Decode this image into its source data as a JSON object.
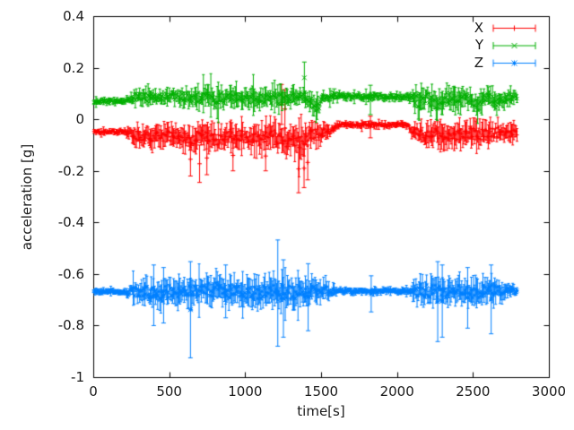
{
  "chart_data": {
    "type": "line-errorbars",
    "title": "",
    "xlabel": "time[s]",
    "ylabel": "acceleration [g]",
    "xlim": [
      0,
      3000
    ],
    "ylim": [
      -1,
      0.4
    ],
    "x_ticks": [
      "0",
      "500",
      "1000",
      "1500",
      "2000",
      "2500",
      "3000"
    ],
    "y_ticks": [
      "0.4",
      "0.2",
      "0",
      "-0.2",
      "-0.4",
      "-0.6",
      "-0.8",
      "-1"
    ],
    "grid": false,
    "legend_position": "top-right-inside",
    "background": "#ffffff",
    "axis_color": "#000000",
    "text_color": "#1a1a1a",
    "envelope_format": [
      "t_seconds",
      "center_g",
      "half_band_g"
    ],
    "spikes_format": [
      "t_seconds",
      "low_g",
      "high_g"
    ],
    "series": [
      {
        "name": "X",
        "color": "#ff0000",
        "marker": "plus",
        "envelope": [
          [
            0,
            -0.048,
            0.012
          ],
          [
            205,
            -0.048,
            0.012
          ],
          [
            235,
            -0.055,
            0.024
          ],
          [
            270,
            -0.06,
            0.038
          ],
          [
            360,
            -0.066,
            0.046
          ],
          [
            450,
            -0.07,
            0.05
          ],
          [
            540,
            -0.06,
            0.044
          ],
          [
            630,
            -0.076,
            0.054
          ],
          [
            720,
            -0.066,
            0.05
          ],
          [
            810,
            -0.08,
            0.058
          ],
          [
            900,
            -0.06,
            0.044
          ],
          [
            1000,
            -0.068,
            0.05
          ],
          [
            1100,
            -0.076,
            0.054
          ],
          [
            1180,
            -0.066,
            0.054
          ],
          [
            1270,
            -0.08,
            0.06
          ],
          [
            1355,
            -0.086,
            0.064
          ],
          [
            1420,
            -0.066,
            0.054
          ],
          [
            1480,
            -0.058,
            0.046
          ],
          [
            1555,
            -0.045,
            0.03
          ],
          [
            1600,
            -0.026,
            0.015
          ],
          [
            1625,
            -0.021,
            0.012
          ],
          [
            2075,
            -0.022,
            0.012
          ],
          [
            2105,
            -0.05,
            0.034
          ],
          [
            2160,
            -0.06,
            0.048
          ],
          [
            2250,
            -0.055,
            0.048
          ],
          [
            2350,
            -0.062,
            0.052
          ],
          [
            2450,
            -0.055,
            0.048
          ],
          [
            2550,
            -0.062,
            0.052
          ],
          [
            2650,
            -0.05,
            0.044
          ],
          [
            2720,
            -0.048,
            0.04
          ],
          [
            2790,
            -0.05,
            0.044
          ]
        ],
        "spikes": [
          [
            640,
            -0.22,
            -0.09
          ],
          [
            700,
            -0.245,
            -0.1
          ],
          [
            748,
            -0.215,
            -0.085
          ],
          [
            920,
            -0.2,
            -0.08
          ],
          [
            1135,
            -0.2,
            -0.085
          ],
          [
            1240,
            -0.02,
            0.135
          ],
          [
            1262,
            -0.035,
            0.115
          ],
          [
            1352,
            -0.285,
            -0.1
          ],
          [
            1388,
            -0.265,
            -0.115
          ],
          [
            1412,
            -0.235,
            -0.1
          ],
          [
            1825,
            -0.072,
            0.012
          ]
        ]
      },
      {
        "name": "Y",
        "color": "#00af00",
        "marker": "cross",
        "envelope": [
          [
            0,
            0.07,
            0.013
          ],
          [
            205,
            0.07,
            0.013
          ],
          [
            235,
            0.078,
            0.02
          ],
          [
            270,
            0.085,
            0.03
          ],
          [
            350,
            0.085,
            0.035
          ],
          [
            430,
            0.08,
            0.034
          ],
          [
            520,
            0.09,
            0.03
          ],
          [
            610,
            0.085,
            0.036
          ],
          [
            700,
            0.086,
            0.04
          ],
          [
            780,
            0.078,
            0.046
          ],
          [
            850,
            0.082,
            0.042
          ],
          [
            930,
            0.086,
            0.036
          ],
          [
            1010,
            0.082,
            0.042
          ],
          [
            1090,
            0.076,
            0.047
          ],
          [
            1170,
            0.078,
            0.045
          ],
          [
            1250,
            0.082,
            0.042
          ],
          [
            1320,
            0.088,
            0.034
          ],
          [
            1395,
            0.09,
            0.036
          ],
          [
            1440,
            0.072,
            0.046
          ],
          [
            1462,
            0.025,
            0.06
          ],
          [
            1480,
            0.035,
            0.055
          ],
          [
            1500,
            0.08,
            0.034
          ],
          [
            1545,
            0.086,
            0.026
          ],
          [
            1585,
            0.09,
            0.016
          ],
          [
            2075,
            0.088,
            0.016
          ],
          [
            2105,
            0.08,
            0.034
          ],
          [
            2148,
            0.06,
            0.062
          ],
          [
            2195,
            0.088,
            0.04
          ],
          [
            2252,
            0.055,
            0.06
          ],
          [
            2320,
            0.088,
            0.04
          ],
          [
            2398,
            0.06,
            0.058
          ],
          [
            2458,
            0.09,
            0.034
          ],
          [
            2528,
            0.055,
            0.06
          ],
          [
            2598,
            0.09,
            0.034
          ],
          [
            2662,
            0.07,
            0.048
          ],
          [
            2718,
            0.088,
            0.034
          ],
          [
            2790,
            0.085,
            0.03
          ]
        ],
        "spikes": [
          [
            1390,
            0.1,
            0.222
          ],
          [
            1587,
            0.082,
            0.118
          ],
          [
            1825,
            0.018,
            0.132
          ]
        ]
      },
      {
        "name": "Z",
        "color": "#0080ff",
        "marker": "star",
        "envelope": [
          [
            0,
            -0.668,
            0.012
          ],
          [
            205,
            -0.668,
            0.012
          ],
          [
            235,
            -0.67,
            0.025
          ],
          [
            270,
            -0.668,
            0.044
          ],
          [
            360,
            -0.672,
            0.05
          ],
          [
            450,
            -0.673,
            0.055
          ],
          [
            540,
            -0.668,
            0.058
          ],
          [
            630,
            -0.668,
            0.06
          ],
          [
            720,
            -0.662,
            0.06
          ],
          [
            800,
            -0.658,
            0.064
          ],
          [
            880,
            -0.664,
            0.06
          ],
          [
            960,
            -0.67,
            0.055
          ],
          [
            1040,
            -0.673,
            0.057
          ],
          [
            1120,
            -0.672,
            0.06
          ],
          [
            1200,
            -0.668,
            0.064
          ],
          [
            1280,
            -0.673,
            0.061
          ],
          [
            1360,
            -0.67,
            0.059
          ],
          [
            1440,
            -0.668,
            0.055
          ],
          [
            1520,
            -0.668,
            0.049
          ],
          [
            1578,
            -0.668,
            0.034
          ],
          [
            1612,
            -0.667,
            0.014
          ],
          [
            2072,
            -0.667,
            0.014
          ],
          [
            2105,
            -0.665,
            0.044
          ],
          [
            2165,
            -0.663,
            0.057
          ],
          [
            2250,
            -0.665,
            0.06
          ],
          [
            2330,
            -0.67,
            0.055
          ],
          [
            2420,
            -0.665,
            0.055
          ],
          [
            2500,
            -0.668,
            0.057
          ],
          [
            2580,
            -0.666,
            0.054
          ],
          [
            2650,
            -0.664,
            0.049
          ],
          [
            2710,
            -0.667,
            0.04
          ],
          [
            2758,
            -0.668,
            0.026
          ],
          [
            2790,
            -0.668,
            0.018
          ]
        ],
        "spikes": [
          [
            398,
            -0.8,
            -0.565
          ],
          [
            463,
            -0.79,
            -0.575
          ],
          [
            640,
            -0.925,
            -0.552
          ],
          [
            872,
            -0.77,
            -0.565
          ],
          [
            1215,
            -0.88,
            -0.468
          ],
          [
            1252,
            -0.845,
            -0.545
          ],
          [
            1415,
            -0.82,
            -0.56
          ],
          [
            1830,
            -0.747,
            -0.607
          ],
          [
            2268,
            -0.862,
            -0.552
          ],
          [
            2298,
            -0.845,
            -0.565
          ],
          [
            2465,
            -0.81,
            -0.575
          ],
          [
            2620,
            -0.832,
            -0.565
          ]
        ]
      }
    ]
  }
}
